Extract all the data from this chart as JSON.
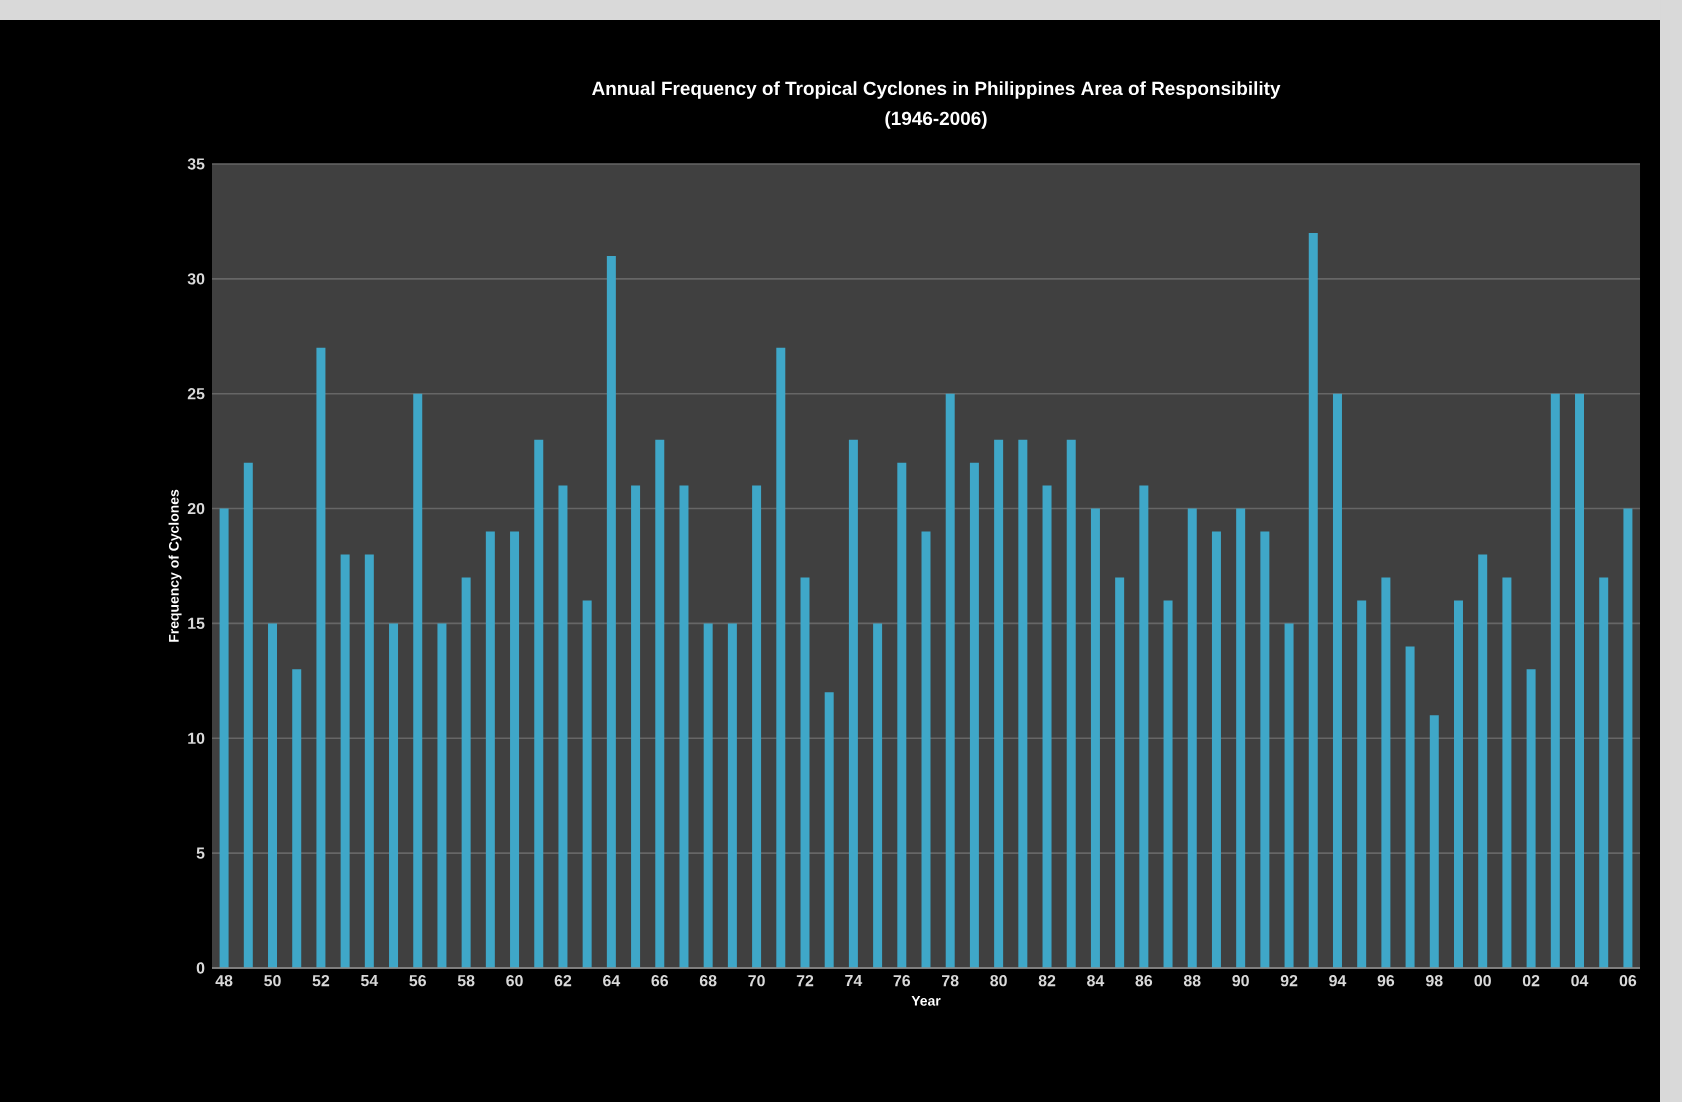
{
  "chart_data": {
    "type": "bar",
    "title": "Annual Frequency of Tropical Cyclones in Philippines Area of Responsibility",
    "subtitle": "(1946-2006)",
    "xlabel": "Year",
    "ylabel": "Frequency of Cyclones",
    "categories": [
      "48",
      null,
      "50",
      null,
      "52",
      null,
      "54",
      null,
      "56",
      null,
      "58",
      null,
      "60",
      null,
      "62",
      null,
      "64",
      null,
      "66",
      null,
      "68",
      null,
      "70",
      null,
      "72",
      null,
      "74",
      null,
      "76",
      null,
      "78",
      null,
      "80",
      null,
      "82",
      null,
      "84",
      null,
      "86",
      null,
      "88",
      null,
      "90",
      null,
      "92",
      null,
      "94",
      null,
      "96",
      null,
      "98",
      null,
      "00",
      null,
      "02",
      null,
      "04",
      null,
      "06"
    ],
    "values": [
      20,
      22,
      15,
      13,
      27,
      18,
      18,
      15,
      25,
      15,
      17,
      19,
      19,
      23,
      21,
      16,
      31,
      21,
      23,
      21,
      15,
      15,
      21,
      27,
      17,
      12,
      23,
      15,
      22,
      19,
      25,
      22,
      23,
      23,
      21,
      23,
      20,
      17,
      21,
      16,
      20,
      19,
      20,
      19,
      15,
      32,
      25,
      16,
      17,
      14,
      11,
      16,
      18,
      17,
      13,
      25,
      25,
      17,
      20
    ],
    "color": "#3fa7c8",
    "ylim": [
      0,
      35
    ],
    "yticks": [
      0,
      5,
      10,
      15,
      20,
      25,
      30,
      35
    ],
    "grid": "y"
  }
}
